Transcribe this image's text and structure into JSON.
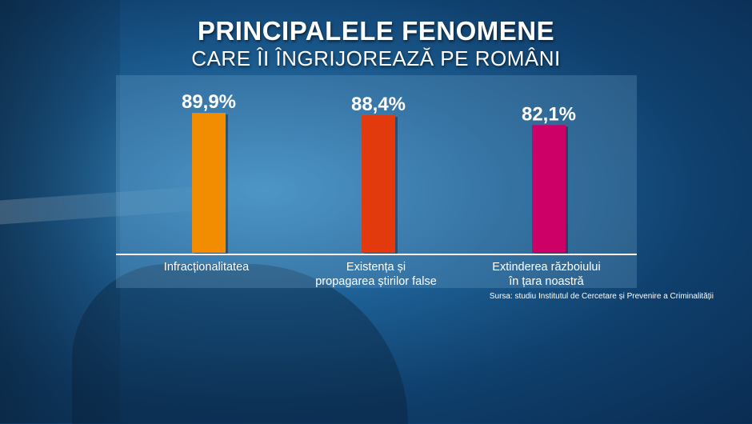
{
  "header": {
    "title": "PRINCIPALELE FENOMENE",
    "subtitle": "CARE ÎI ÎNGRIJOREAZĂ PE ROMÂNI"
  },
  "source": "Sursa: studiu Institutul de Cercetare și Prevenire a Criminalității",
  "chart_data": {
    "type": "bar",
    "categories": [
      [
        "Infracționalitatea"
      ],
      [
        "Existența și",
        "propagarea știrilor false"
      ],
      [
        "Extinderea războiului",
        "în țara noastră"
      ]
    ],
    "values": [
      89.9,
      88.4,
      82.1
    ],
    "value_labels": [
      "89,9%",
      "88,4%",
      "82,1%"
    ],
    "colors": [
      "#f28c00",
      "#e23a0c",
      "#cc0066"
    ],
    "grid": false,
    "legend": "none"
  }
}
